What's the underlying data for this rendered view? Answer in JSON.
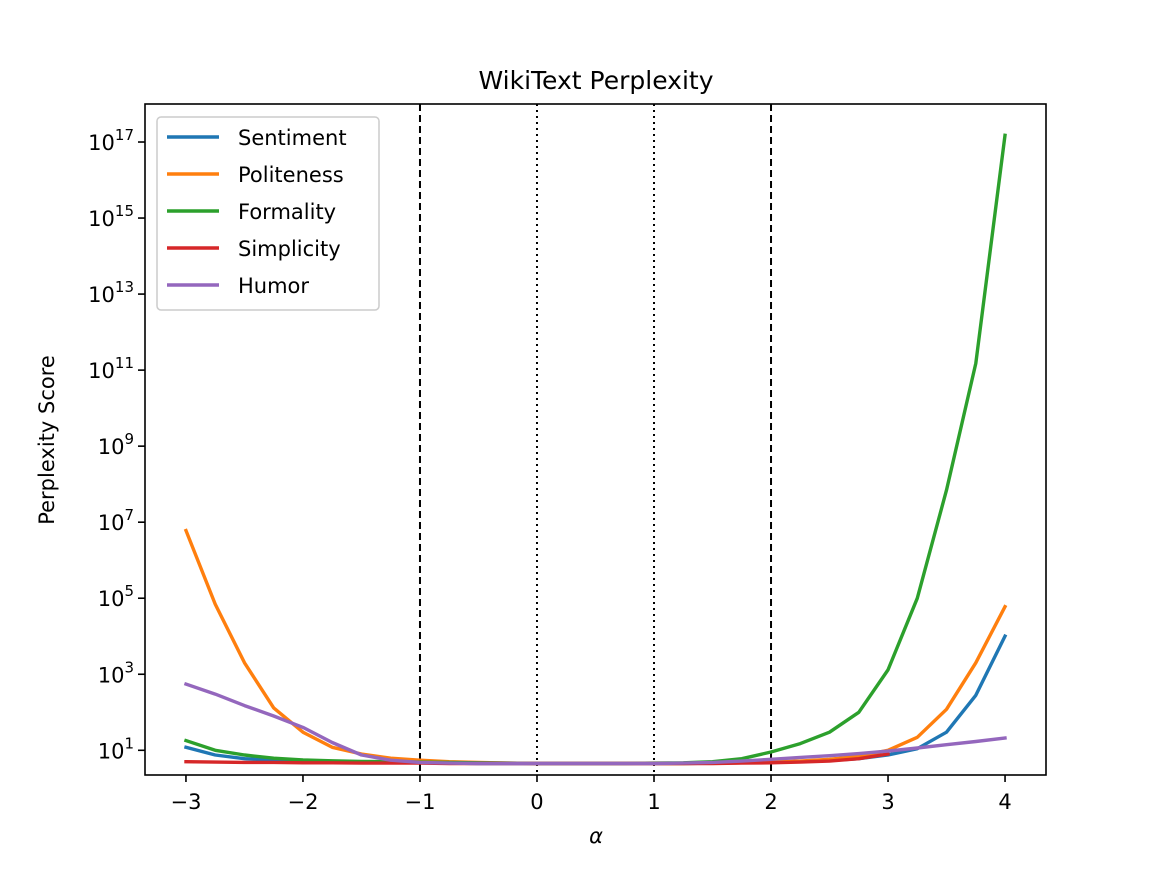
{
  "chart_data": {
    "type": "line",
    "title": "WikiText Perplexity",
    "xlabel": "α",
    "ylabel": "Perplexity Score",
    "xlim": [
      -3.35,
      4.35
    ],
    "ylim_log10": [
      0.35,
      18.0
    ],
    "y_scale": "log",
    "grid": false,
    "legend_position": "top-left",
    "x_ticks": [
      -3,
      -2,
      -1,
      0,
      1,
      2,
      3,
      4
    ],
    "x_tick_labels": [
      "−3",
      "−2",
      "−1",
      "0",
      "1",
      "2",
      "3",
      "4"
    ],
    "y_ticks": [
      {
        "base": "10",
        "exp": "1",
        "value": 10
      },
      {
        "base": "10",
        "exp": "3",
        "value": 1000
      },
      {
        "base": "10",
        "exp": "5",
        "value": 100000
      },
      {
        "base": "10",
        "exp": "7",
        "value": 10000000
      },
      {
        "base": "10",
        "exp": "9",
        "value": 1000000000
      },
      {
        "base": "10",
        "exp": "11",
        "value": 100000000000
      },
      {
        "base": "10",
        "exp": "13",
        "value": 10000000000000
      },
      {
        "base": "10",
        "exp": "15",
        "value": 1000000000000000
      },
      {
        "base": "10",
        "exp": "17",
        "value": 100000000000000000
      }
    ],
    "vlines": [
      {
        "x": -1,
        "style": "dashed"
      },
      {
        "x": 0,
        "style": "dotted"
      },
      {
        "x": 1,
        "style": "dotted"
      },
      {
        "x": 2,
        "style": "dashed"
      }
    ],
    "x": [
      -3,
      -2.75,
      -2.5,
      -2.25,
      -2,
      -1.75,
      -1.5,
      -1.25,
      -1,
      -0.75,
      -0.5,
      -0.25,
      0,
      0.25,
      0.5,
      0.75,
      1,
      1.25,
      1.5,
      1.75,
      2,
      2.25,
      2.5,
      2.75,
      3,
      3.25,
      3.5,
      3.75,
      4
    ],
    "series": [
      {
        "name": "Sentiment",
        "color": "#1f77b4",
        "values": [
          12,
          7.5,
          6,
          5.5,
          5.2,
          5.0,
          4.9,
          4.8,
          4.7,
          4.6,
          4.5,
          4.5,
          4.5,
          4.5,
          4.5,
          4.5,
          4.5,
          4.5,
          4.6,
          4.7,
          4.9,
          5.1,
          5.4,
          6,
          7.5,
          11,
          30,
          280,
          10000
        ]
      },
      {
        "name": "Politeness",
        "color": "#ff7f0e",
        "values": [
          6000000,
          70000,
          2000,
          130,
          30,
          12,
          8,
          6.2,
          5.5,
          5.0,
          4.8,
          4.6,
          4.5,
          4.5,
          4.5,
          4.5,
          4.5,
          4.5,
          4.6,
          4.7,
          4.9,
          5.2,
          5.8,
          7,
          10,
          22,
          120,
          2000,
          60000
        ]
      },
      {
        "name": "Formality",
        "color": "#2ca02c",
        "values": [
          18,
          10,
          7.5,
          6.2,
          5.6,
          5.3,
          5.1,
          5.0,
          4.9,
          4.8,
          4.7,
          4.6,
          4.5,
          4.5,
          4.5,
          4.5,
          4.6,
          4.7,
          5.0,
          6.0,
          9,
          15,
          30,
          100,
          1300,
          100000,
          70000000,
          150000000000,
          150000000000000000
        ]
      },
      {
        "name": "Simplicity",
        "color": "#d62728",
        "values": [
          5.0,
          4.9,
          4.8,
          4.8,
          4.7,
          4.7,
          4.6,
          4.6,
          4.6,
          4.5,
          4.5,
          4.5,
          4.5,
          4.5,
          4.5,
          4.5,
          4.5,
          4.5,
          4.5,
          4.6,
          4.7,
          4.9,
          5.2,
          6.0,
          8.0,
          null,
          null,
          null,
          null
        ]
      },
      {
        "name": "Humor",
        "color": "#9467bd",
        "values": [
          550,
          300,
          150,
          80,
          40,
          16,
          7.5,
          5.5,
          4.8,
          4.6,
          4.5,
          4.5,
          4.5,
          4.5,
          4.5,
          4.5,
          4.5,
          4.6,
          4.8,
          5.2,
          5.8,
          6.5,
          7.2,
          8.2,
          9.5,
          11.5,
          14,
          17,
          21
        ]
      }
    ]
  }
}
